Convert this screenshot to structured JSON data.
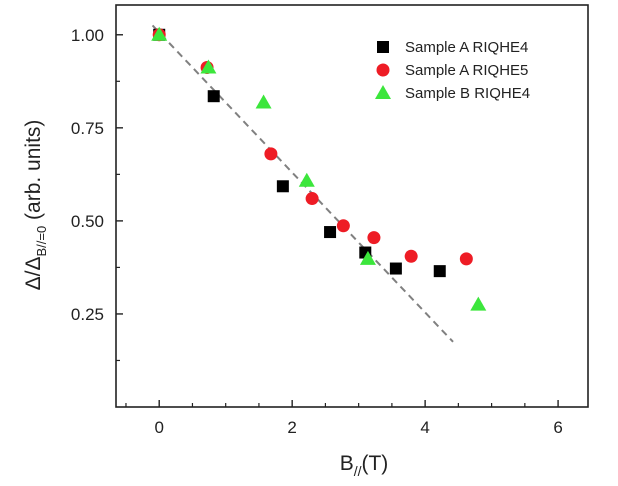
{
  "chart_data": {
    "type": "scatter",
    "xlabel": {
      "main": "B",
      "sub": "//",
      "unit": "(T)"
    },
    "ylabel": {
      "prefix": "Δ/Δ",
      "sub": "B//=0",
      "suffix": "(arb. units)"
    },
    "xlim": [
      -0.65,
      6.45
    ],
    "ylim": [
      0.0,
      1.08
    ],
    "xticks": [
      0,
      2,
      4,
      6
    ],
    "xtick_labels": [
      "0",
      "2",
      "4",
      "6"
    ],
    "yticks": [
      0.25,
      0.5,
      0.75,
      1.0
    ],
    "ytick_labels": [
      "0.25",
      "0.50",
      "0.75",
      "1.00"
    ],
    "grid": false,
    "legend_position": "top-right",
    "series": [
      {
        "name": "Sample A RIQHE4",
        "marker": "square",
        "color": "#000000",
        "x": [
          0.0,
          0.82,
          1.86,
          2.57,
          3.1,
          3.56,
          4.22
        ],
        "y": [
          1.0,
          0.835,
          0.593,
          0.47,
          0.415,
          0.372,
          0.365
        ]
      },
      {
        "name": "Sample A RIQHE5",
        "marker": "circle",
        "color": "#ee1c25",
        "x": [
          0.0,
          0.72,
          1.68,
          2.3,
          2.77,
          3.23,
          3.79,
          4.62
        ],
        "y": [
          1.0,
          0.912,
          0.68,
          0.56,
          0.487,
          0.455,
          0.405,
          0.398
        ]
      },
      {
        "name": "Sample B RIQHE4",
        "marker": "triangle",
        "color": "#3ce63c",
        "x": [
          0.0,
          0.74,
          1.57,
          2.22,
          3.14,
          4.8
        ],
        "y": [
          1.0,
          0.912,
          0.818,
          0.608,
          0.398,
          0.275
        ]
      }
    ],
    "fit_line": {
      "style": "dashed",
      "color": "#808080",
      "x": [
        -0.1,
        4.42
      ],
      "y": [
        1.025,
        0.175
      ]
    }
  }
}
